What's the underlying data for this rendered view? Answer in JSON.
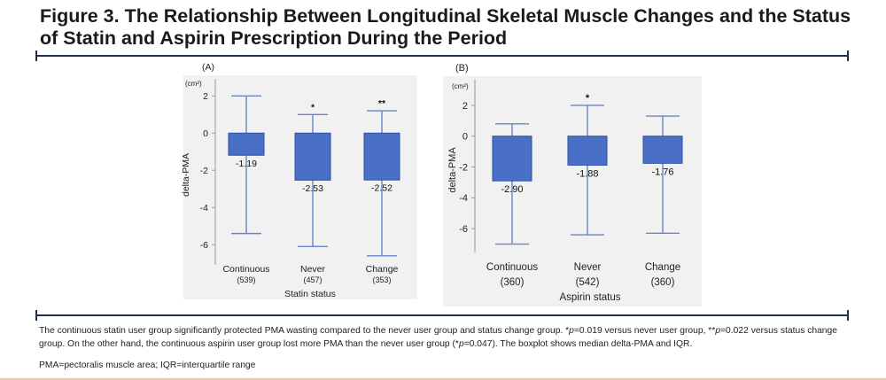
{
  "figure": {
    "title": "Figure 3. The Relationship Between Longitudinal Skeletal Muscle Changes and the Status of Statin and Aspirin Prescription During the Period",
    "footnote_parts": [
      "The continuous statin user group significantly protected PMA wasting compared to the never user group and status change group. *",
      "p",
      "=0.019 versus never user group, **",
      "p",
      "=0.022 versus status change group. On the other hand, the continuous aspirin user group lost more PMA than the never user group (*",
      "p",
      "=0.047). The boxplot shows median delta-PMA and IQR."
    ],
    "abbreviations": "PMA=pectoralis muscle area; IQR=interquartile range"
  },
  "colors": {
    "bar": "#4a6fc6",
    "bar_edge": "#2d4f9e",
    "whisker": "#6a84c8",
    "plot_bg": "#f1f1f1",
    "rule": "#1f2f4f"
  },
  "chart_data": [
    {
      "type": "bar",
      "panel_label": "(A)",
      "unit_label": "(cm²)",
      "xlabel": "Statin status",
      "ylabel": "delta-PMA",
      "categories": [
        "Continuous",
        "Never",
        "Change"
      ],
      "counts": [
        "(539)",
        "(457)",
        "(353)"
      ],
      "values": [
        -1.19,
        -2.53,
        -2.52
      ],
      "value_labels": [
        "-1.19",
        "-2.53",
        "-2.52"
      ],
      "whisker_low": [
        -5.4,
        -6.1,
        -6.6
      ],
      "whisker_high": [
        2.0,
        1.0,
        1.2
      ],
      "significance": [
        "",
        "*",
        "**"
      ],
      "ylim": [
        -6.8,
        2.3
      ],
      "yticks": [
        2,
        0,
        -2,
        -4,
        -6
      ],
      "ytick_labels": [
        "2",
        "0",
        "-2",
        "-4",
        "-6"
      ],
      "grid": false
    },
    {
      "type": "bar",
      "panel_label": "(B)",
      "unit_label": "(cm²)",
      "xlabel": "Aspirin status",
      "ylabel": "delta-PMA",
      "categories": [
        "Continuous",
        "Never",
        "Change"
      ],
      "counts": [
        "(360)",
        "(542)",
        "(360)"
      ],
      "values": [
        -2.9,
        -1.88,
        -1.76
      ],
      "value_labels": [
        "-2.90",
        "-1.88",
        "-1.76"
      ],
      "whisker_low": [
        -7.0,
        -6.4,
        -6.3
      ],
      "whisker_high": [
        0.8,
        2.0,
        1.3
      ],
      "significance": [
        "",
        "*",
        ""
      ],
      "ylim": [
        -7.2,
        2.8
      ],
      "yticks": [
        2,
        0,
        -2,
        -4,
        -6
      ],
      "ytick_labels": [
        "2",
        "0",
        "-2",
        "-4",
        "-6"
      ],
      "grid": false
    }
  ]
}
